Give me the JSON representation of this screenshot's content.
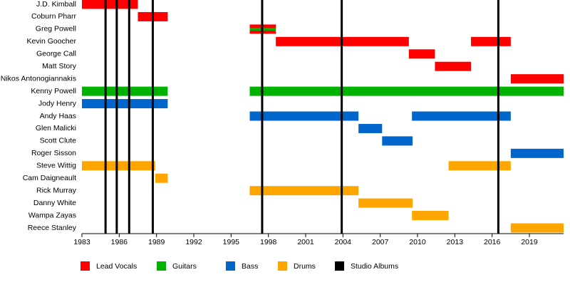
{
  "chart_data": {
    "type": "timeline",
    "categories": [
      "J.D. Kimball",
      "Coburn Pharr",
      "Greg Powell",
      "Kevin Goocher",
      "George Call",
      "Matt Story",
      "Nikos Antonogiannakis",
      "Kenny Powell",
      "Jody Henry",
      "Andy Haas",
      "Glen Malicki",
      "Scott Clute",
      "Roger Sisson",
      "Steve Wittig",
      "Cam Daigneault",
      "Rick Murray",
      "Danny White",
      "Wampa Zayas",
      "Reece Stanley"
    ],
    "series": [
      {
        "name": "Lead Vocals",
        "color": "#ff0000",
        "values": [
          [
            [
              1983,
              1987.5
            ]
          ],
          [
            [
              1987.5,
              1989.9
            ]
          ],
          [
            [
              1996.5,
              1998.6
            ]
          ],
          [
            [
              1998.6,
              2009.3
            ],
            [
              2014.3,
              2017.5
            ]
          ],
          [
            [
              2009.3,
              2011.4
            ]
          ],
          [
            [
              2011.4,
              2014.3
            ]
          ],
          [
            [
              2017.5,
              2021.75
            ]
          ],
          null,
          null,
          null,
          null,
          null,
          null,
          null,
          null,
          null,
          null,
          null,
          null
        ]
      },
      {
        "name": "Guitars",
        "color": "#00b300",
        "values": [
          null,
          null,
          [
            [
              1996.5,
              1998.6
            ]
          ],
          null,
          null,
          null,
          null,
          [
            [
              1983,
              1989.9
            ],
            [
              1996.5,
              2021.75
            ]
          ],
          null,
          null,
          null,
          null,
          null,
          null,
          null,
          null,
          null,
          null,
          null
        ]
      },
      {
        "name": "Bass",
        "color": "#0066cc",
        "values": [
          null,
          null,
          null,
          null,
          null,
          null,
          null,
          null,
          [
            [
              1983,
              1989.9
            ]
          ],
          [
            [
              1996.5,
              2005.25
            ],
            [
              2009.55,
              2017.5
            ]
          ],
          [
            [
              2005.25,
              2007.15
            ]
          ],
          [
            [
              2007.15,
              2009.6
            ]
          ],
          [
            [
              2017.5,
              2021.75
            ]
          ],
          null,
          null,
          null,
          null,
          null,
          null
        ]
      },
      {
        "name": "Drums",
        "color": "#ffa500",
        "values": [
          null,
          null,
          null,
          null,
          null,
          null,
          null,
          null,
          null,
          null,
          null,
          null,
          null,
          [
            [
              1983,
              1988.9
            ],
            [
              2012.5,
              2017.5
            ]
          ],
          [
            [
              1988.9,
              1989.9
            ]
          ],
          [
            [
              1996.5,
              2005.25
            ]
          ],
          [
            [
              2005.25,
              2009.6
            ]
          ],
          [
            [
              2009.55,
              2012.5
            ]
          ],
          [
            [
              2017.5,
              2021.75
            ]
          ]
        ]
      }
    ],
    "markers": {
      "name": "Studio Albums",
      "color": "#000000",
      "values": [
        1984.9,
        1985.8,
        1986.8,
        1988.7,
        1997.5,
        2003.9,
        2016.5
      ]
    },
    "xlim": [
      1983,
      2021.75
    ],
    "xticks": [
      1983,
      1986,
      1989,
      1992,
      1995,
      1998,
      2001,
      2004,
      2007,
      2010,
      2013,
      2016,
      2019
    ]
  }
}
